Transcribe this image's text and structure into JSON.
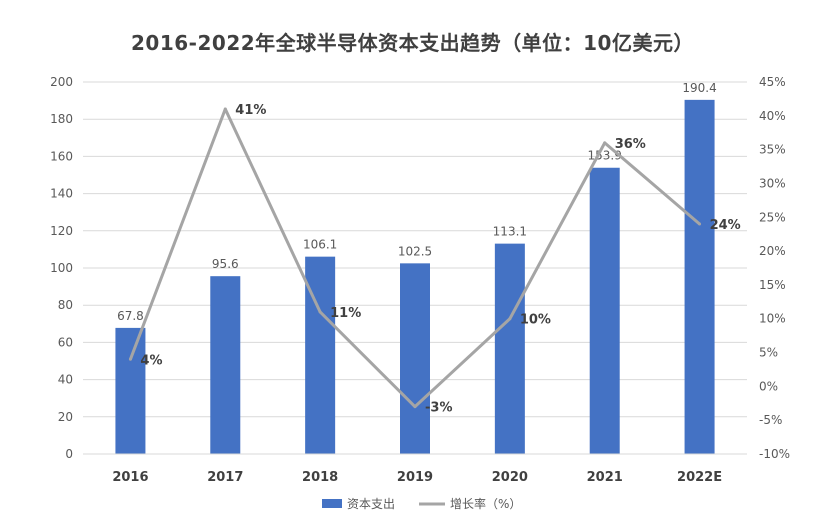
{
  "chart_data": {
    "type": "bar",
    "title": "2016-2022年全球半导体资本支出趋势（单位：10亿美元）",
    "categories": [
      "2016",
      "2017",
      "2018",
      "2019",
      "2020",
      "2021",
      "2022E"
    ],
    "series": [
      {
        "name": "资本支出",
        "type": "bar",
        "axis": "left",
        "values": [
          67.8,
          95.6,
          106.1,
          102.5,
          113.1,
          153.9,
          190.4
        ],
        "labels": [
          "67.8",
          "95.6",
          "106.1",
          "102.5",
          "113.1",
          "153.9",
          "190.4"
        ]
      },
      {
        "name": "增长率（%）",
        "type": "line",
        "axis": "right",
        "values": [
          4,
          41,
          11,
          -3,
          10,
          36,
          24
        ],
        "labels": [
          "4%",
          "41%",
          "11%",
          "-3%",
          "10%",
          "36%",
          "24%"
        ]
      }
    ],
    "y_left": {
      "min": 0,
      "max": 200,
      "step": 20,
      "ticks": [
        "0",
        "20",
        "40",
        "60",
        "80",
        "100",
        "120",
        "140",
        "160",
        "180",
        "200"
      ]
    },
    "y_right": {
      "min": -10,
      "max": 45,
      "step": 5,
      "ticks": [
        "-10%",
        "-5%",
        "0%",
        "5%",
        "10%",
        "15%",
        "20%",
        "25%",
        "30%",
        "35%",
        "40%",
        "45%"
      ]
    },
    "grid": true,
    "legend": "bottom-center",
    "colors": {
      "bar": "#4472C4",
      "line": "#A5A5A5",
      "grid": "#D9D9D9"
    }
  }
}
